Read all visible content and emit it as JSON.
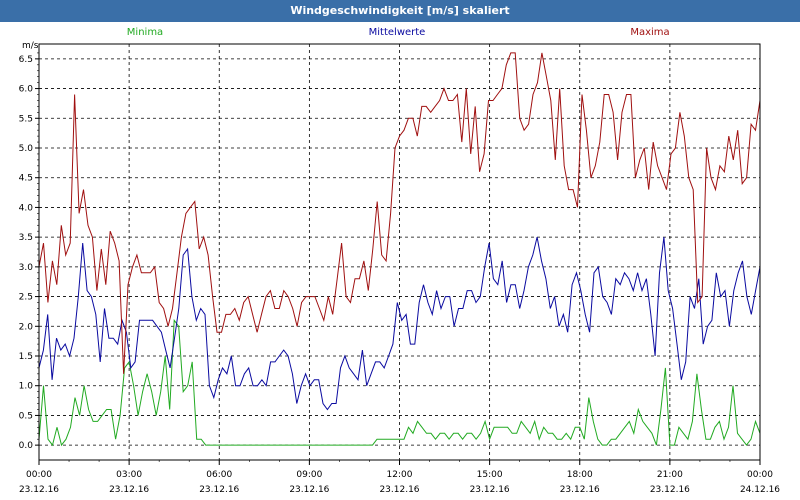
{
  "window": {
    "title": "Windgeschwindigkeit [m/s] skaliert"
  },
  "colors": {
    "min": "#22aa22",
    "mean": "#0a0aa0",
    "max": "#a01010",
    "title_bg": "#3a6fa8"
  },
  "chart_data": {
    "type": "line",
    "title": "Windgeschwindigkeit [m/s] skaliert",
    "ylabel": "m/s",
    "xlabel": "",
    "ylim": [
      -0.25,
      6.75
    ],
    "xlim_hours": [
      0,
      24
    ],
    "grid": true,
    "legend": "top",
    "y_ticks": [
      "0.0",
      "0.5",
      "1.0",
      "1.5",
      "2.0",
      "2.5",
      "3.0",
      "3.5",
      "4.0",
      "4.5",
      "5.0",
      "5.5",
      "6.0",
      "6.5"
    ],
    "x_ticks": [
      {
        "time": "00:00",
        "date": "23.12.16"
      },
      {
        "time": "03:00",
        "date": "23.12.16"
      },
      {
        "time": "06:00",
        "date": "23.12.16"
      },
      {
        "time": "09:00",
        "date": "23.12.16"
      },
      {
        "time": "12:00",
        "date": "23.12.16"
      },
      {
        "time": "15:00",
        "date": "23.12.16"
      },
      {
        "time": "18:00",
        "date": "23.12.16"
      },
      {
        "time": "21:00",
        "date": "23.12.16"
      },
      {
        "time": "00:00",
        "date": "24.12.16"
      }
    ],
    "series": [
      {
        "name": "Minima",
        "values": [
          0.1,
          1.0,
          0.1,
          0.0,
          0.3,
          0.0,
          0.1,
          0.3,
          0.8,
          0.5,
          1.0,
          0.6,
          0.4,
          0.4,
          0.5,
          0.6,
          0.6,
          0.1,
          0.5,
          1.3,
          1.4,
          1.0,
          0.5,
          0.9,
          1.2,
          0.9,
          0.5,
          0.9,
          1.5,
          0.6,
          2.1,
          2.0,
          0.9,
          1.0,
          1.4,
          0.1,
          0.1,
          0.0,
          0.0,
          0.0,
          0.0,
          0.0,
          0.0,
          0.0,
          0.0,
          0.0,
          0.0,
          0.0,
          0.0,
          0.0,
          0.0,
          0.0,
          0.0,
          0.0,
          0.0,
          0.0,
          0.0,
          0.0,
          0.0,
          0.0,
          0.0,
          0.0,
          0.0,
          0.0,
          0.0,
          0.0,
          0.0,
          0.0,
          0.0,
          0.0,
          0.0,
          0.0,
          0.0,
          0.0,
          0.0,
          0.1,
          0.1,
          0.1,
          0.1,
          0.1,
          0.1,
          0.1,
          0.3,
          0.2,
          0.4,
          0.3,
          0.2,
          0.2,
          0.1,
          0.2,
          0.2,
          0.1,
          0.2,
          0.2,
          0.1,
          0.2,
          0.2,
          0.1,
          0.2,
          0.4,
          0.1,
          0.3,
          0.3,
          0.3,
          0.3,
          0.2,
          0.2,
          0.4,
          0.3,
          0.2,
          0.4,
          0.1,
          0.3,
          0.2,
          0.2,
          0.1,
          0.1,
          0.2,
          0.1,
          0.3,
          0.3,
          0.1,
          0.8,
          0.4,
          0.1,
          0.0,
          0.0,
          0.1,
          0.1,
          0.2,
          0.3,
          0.4,
          0.2,
          0.6,
          0.4,
          0.3,
          0.2,
          0.0,
          0.6,
          1.3,
          0.0,
          0.0,
          0.3,
          0.2,
          0.1,
          0.4,
          1.2,
          0.6,
          0.1,
          0.1,
          0.3,
          0.4,
          0.1,
          0.3,
          1.0,
          0.2,
          0.1,
          0.0,
          0.1,
          0.4,
          0.2
        ]
      },
      {
        "name": "Mittelwerte",
        "values": [
          1.3,
          1.6,
          2.2,
          1.1,
          1.8,
          1.6,
          1.7,
          1.5,
          1.8,
          2.5,
          3.4,
          2.6,
          2.5,
          2.2,
          1.4,
          2.3,
          1.8,
          1.8,
          1.7,
          2.1,
          1.9,
          1.3,
          1.4,
          2.1,
          2.1,
          2.1,
          2.1,
          2.0,
          1.9,
          1.6,
          1.3,
          1.8,
          2.3,
          3.2,
          3.3,
          2.5,
          2.1,
          2.3,
          2.2,
          1.0,
          0.8,
          1.1,
          1.3,
          1.2,
          1.5,
          1.0,
          1.0,
          1.2,
          1.3,
          1.0,
          1.0,
          1.1,
          1.0,
          1.4,
          1.4,
          1.5,
          1.6,
          1.5,
          1.2,
          0.7,
          1.0,
          1.2,
          1.0,
          1.1,
          1.1,
          0.7,
          0.6,
          0.7,
          0.7,
          1.3,
          1.5,
          1.3,
          1.2,
          1.1,
          1.6,
          1.0,
          1.2,
          1.4,
          1.4,
          1.3,
          1.5,
          1.7,
          2.4,
          2.1,
          2.2,
          1.7,
          1.7,
          2.4,
          2.7,
          2.4,
          2.2,
          2.6,
          2.3,
          2.5,
          2.5,
          2.0,
          2.3,
          2.3,
          2.6,
          2.6,
          2.4,
          2.5,
          3.0,
          3.4,
          2.8,
          2.7,
          3.1,
          2.4,
          2.7,
          2.7,
          2.3,
          2.6,
          3.0,
          3.2,
          3.5,
          3.1,
          2.8,
          2.3,
          2.5,
          2.0,
          2.2,
          1.9,
          2.7,
          2.9,
          2.6,
          2.2,
          1.9,
          2.9,
          3.0,
          2.5,
          2.4,
          2.2,
          2.8,
          2.7,
          2.9,
          2.8,
          2.6,
          2.9,
          2.6,
          2.8,
          2.2,
          1.5,
          2.9,
          3.5,
          2.6,
          2.3,
          1.7,
          1.1,
          1.4,
          2.5,
          2.3,
          2.8,
          1.7,
          2.0,
          2.1,
          2.9,
          2.5,
          2.6,
          2.0,
          2.6,
          2.9,
          3.1,
          2.5,
          2.2,
          2.6,
          3.0
        ]
      },
      {
        "name": "Maxima",
        "values": [
          3.0,
          3.4,
          2.4,
          3.1,
          2.7,
          3.7,
          3.2,
          3.4,
          5.9,
          3.9,
          4.3,
          3.7,
          3.5,
          2.6,
          3.3,
          2.7,
          3.6,
          3.4,
          3.1,
          1.2,
          2.7,
          3.0,
          3.2,
          2.9,
          2.9,
          2.9,
          3.0,
          2.4,
          2.3,
          2.0,
          2.3,
          2.9,
          3.5,
          3.9,
          4.0,
          4.1,
          3.3,
          3.5,
          3.2,
          2.5,
          1.9,
          1.9,
          2.2,
          2.2,
          2.3,
          2.1,
          2.4,
          2.5,
          2.2,
          1.9,
          2.2,
          2.5,
          2.6,
          2.3,
          2.3,
          2.6,
          2.5,
          2.3,
          2.0,
          2.4,
          2.5,
          2.5,
          2.5,
          2.3,
          2.1,
          2.5,
          2.2,
          2.8,
          3.4,
          2.5,
          2.4,
          2.8,
          2.8,
          3.1,
          2.6,
          3.3,
          4.1,
          3.2,
          3.1,
          3.9,
          5.0,
          5.2,
          5.3,
          5.5,
          5.5,
          5.2,
          5.7,
          5.7,
          5.6,
          5.7,
          5.8,
          6.0,
          5.8,
          5.8,
          5.9,
          5.1,
          6.0,
          4.9,
          5.7,
          4.6,
          4.9,
          5.8,
          5.8,
          5.9,
          6.0,
          6.4,
          6.6,
          6.6,
          5.5,
          5.3,
          5.4,
          5.9,
          6.1,
          6.6,
          6.2,
          5.8,
          4.8,
          6.0,
          4.7,
          4.3,
          4.3,
          4.0,
          5.9,
          5.3,
          4.5,
          4.7,
          5.1,
          5.9,
          5.9,
          5.6,
          4.8,
          5.6,
          5.9,
          5.9,
          4.5,
          4.8,
          5.0,
          4.3,
          5.1,
          4.7,
          4.5,
          4.3,
          4.9,
          5.0,
          5.6,
          5.2,
          4.5,
          4.3,
          2.4,
          2.5,
          5.0,
          4.5,
          4.3,
          4.7,
          4.6,
          5.2,
          4.8,
          5.3,
          4.4,
          4.5,
          5.4,
          5.3,
          5.8
        ]
      }
    ]
  }
}
